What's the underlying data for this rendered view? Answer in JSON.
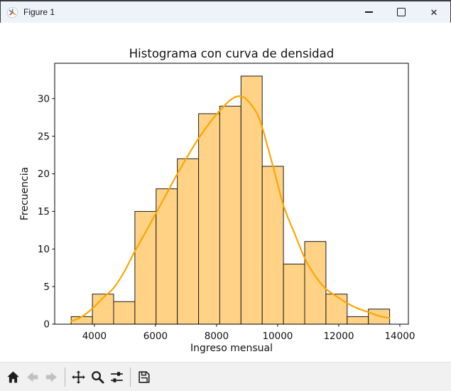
{
  "window": {
    "title": "Figure 1",
    "buttons": [
      {
        "name": "minimize"
      },
      {
        "name": "maximize"
      },
      {
        "name": "close",
        "glyph": "✕"
      }
    ]
  },
  "chart_data": {
    "type": "bar",
    "subtype": "histogram_with_density_curve",
    "title": "Histograma con curva de densidad",
    "xlabel": "Ingreso mensual",
    "ylabel": "Frecuencia",
    "bin_edges": [
      3240,
      3935,
      4630,
      5325,
      6020,
      6715,
      7410,
      8105,
      8800,
      9495,
      10190,
      10885,
      11580,
      12275,
      12970,
      13665
    ],
    "counts": [
      1,
      4,
      3,
      15,
      18,
      22,
      28,
      29,
      33,
      21,
      8,
      11,
      4,
      1,
      2
    ],
    "x_tick_values": [
      4000,
      6000,
      8000,
      10000,
      12000,
      14000
    ],
    "x_tick_labels": [
      "4000",
      "6000",
      "8000",
      "10000",
      "12000",
      "14000"
    ],
    "y_tick_values": [
      0,
      5,
      10,
      15,
      20,
      25,
      30
    ],
    "y_tick_labels": [
      "0",
      "5",
      "10",
      "15",
      "20",
      "25",
      "30"
    ],
    "xlim": [
      2700,
      14280
    ],
    "ylim": [
      0,
      34.7
    ],
    "grid": false,
    "legend": null,
    "colors": {
      "bar_fill": "#FFD285",
      "bar_edge": "#1c1c1c",
      "curve": "#FFA500",
      "axis": "#000000",
      "text": "#111111"
    },
    "density_curve": [
      [
        3240,
        0.4
      ],
      [
        3590,
        1.0
      ],
      [
        3935,
        2.1
      ],
      [
        4280,
        3.5
      ],
      [
        4630,
        4.8
      ],
      [
        4980,
        7.0
      ],
      [
        5325,
        9.7
      ],
      [
        5670,
        12.2
      ],
      [
        6020,
        14.8
      ],
      [
        6370,
        17.4
      ],
      [
        6715,
        20.0
      ],
      [
        7060,
        22.4
      ],
      [
        7410,
        24.7
      ],
      [
        7760,
        26.7
      ],
      [
        8105,
        28.4
      ],
      [
        8450,
        29.8
      ],
      [
        8700,
        30.3
      ],
      [
        8950,
        30.0
      ],
      [
        9300,
        28.2
      ],
      [
        9520,
        25.8
      ],
      [
        9860,
        20.8
      ],
      [
        10190,
        15.8
      ],
      [
        10540,
        12.2
      ],
      [
        10885,
        8.8
      ],
      [
        11230,
        6.4
      ],
      [
        11580,
        4.7
      ],
      [
        11930,
        3.7
      ],
      [
        12275,
        2.8
      ],
      [
        12620,
        2.1
      ],
      [
        12970,
        1.6
      ],
      [
        13320,
        1.1
      ],
      [
        13665,
        0.8
      ]
    ]
  },
  "toolbar": {
    "buttons": [
      {
        "name": "home",
        "enabled": true
      },
      {
        "name": "back",
        "enabled": false
      },
      {
        "name": "forward",
        "enabled": false
      },
      {
        "name": "pan",
        "enabled": true
      },
      {
        "name": "zoom",
        "enabled": true
      },
      {
        "name": "configure-subplots",
        "enabled": true
      },
      {
        "name": "save",
        "enabled": true
      }
    ],
    "message": ""
  }
}
